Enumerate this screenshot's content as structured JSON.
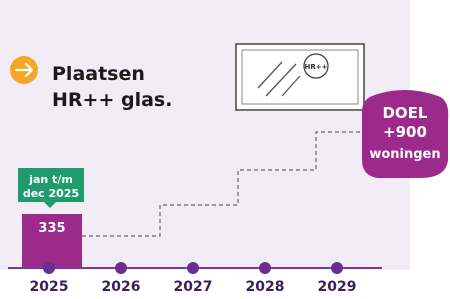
{
  "title": {
    "line1": "Plaatsen",
    "line2": "HR++ glas."
  },
  "glass_label": "HR++",
  "badge": {
    "line1": "jan t/m",
    "line2": "dec 2025"
  },
  "bar_value": 335,
  "goal": {
    "line1": "DOEL",
    "line2": "+900",
    "line3": "woningen"
  },
  "timeline": [
    "2025",
    "2026",
    "2027",
    "2028",
    "2029"
  ]
}
